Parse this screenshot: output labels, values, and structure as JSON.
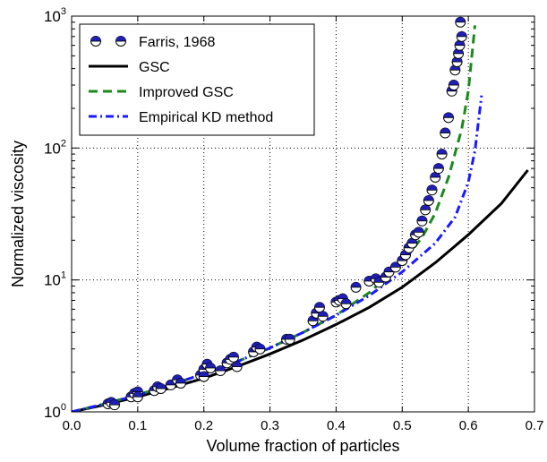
{
  "chart_data": {
    "type": "scatter",
    "xlabel": "Volume fraction of particles",
    "ylabel": "Normalized viscosity",
    "xlim": [
      0.0,
      0.7
    ],
    "ylim": [
      1,
      1000
    ],
    "yscale": "log",
    "grid": true,
    "legend_position": "top-left",
    "x_ticks": [
      "0.0",
      "0.1",
      "0.2",
      "0.3",
      "0.4",
      "0.5",
      "0.6",
      "0.7"
    ],
    "y_ticks": [
      {
        "value": 1,
        "base": "10",
        "exp": "0"
      },
      {
        "value": 10,
        "base": "10",
        "exp": "1"
      },
      {
        "value": 100,
        "base": "10",
        "exp": "2"
      },
      {
        "value": 1000,
        "base": "10",
        "exp": "3"
      }
    ],
    "series": [
      {
        "name": "Farris, 1968",
        "kind": "scatter",
        "color": "#1f1fb4",
        "points": [
          [
            0.055,
            1.15
          ],
          [
            0.06,
            1.18
          ],
          [
            0.065,
            1.13
          ],
          [
            0.09,
            1.3
          ],
          [
            0.095,
            1.38
          ],
          [
            0.1,
            1.42
          ],
          [
            0.1,
            1.3
          ],
          [
            0.125,
            1.45
          ],
          [
            0.13,
            1.55
          ],
          [
            0.135,
            1.5
          ],
          [
            0.15,
            1.6
          ],
          [
            0.16,
            1.75
          ],
          [
            0.165,
            1.65
          ],
          [
            0.195,
            1.9
          ],
          [
            0.2,
            2.1
          ],
          [
            0.205,
            2.3
          ],
          [
            0.21,
            2.15
          ],
          [
            0.2,
            1.85
          ],
          [
            0.225,
            2.05
          ],
          [
            0.235,
            2.35
          ],
          [
            0.24,
            2.5
          ],
          [
            0.245,
            2.6
          ],
          [
            0.25,
            2.2
          ],
          [
            0.275,
            2.85
          ],
          [
            0.28,
            3.1
          ],
          [
            0.285,
            3.0
          ],
          [
            0.325,
            3.55
          ],
          [
            0.33,
            3.55
          ],
          [
            0.365,
            4.9
          ],
          [
            0.37,
            5.6
          ],
          [
            0.375,
            6.2
          ],
          [
            0.38,
            5.3
          ],
          [
            0.4,
            6.8
          ],
          [
            0.405,
            7.0
          ],
          [
            0.41,
            7.2
          ],
          [
            0.415,
            6.6
          ],
          [
            0.43,
            8.8
          ],
          [
            0.45,
            9.8
          ],
          [
            0.46,
            10.2
          ],
          [
            0.465,
            9.6
          ],
          [
            0.475,
            10.5
          ],
          [
            0.48,
            11.5
          ],
          [
            0.49,
            12.5
          ],
          [
            0.5,
            14
          ],
          [
            0.505,
            15.5
          ],
          [
            0.51,
            17.5
          ],
          [
            0.515,
            19
          ],
          [
            0.52,
            22
          ],
          [
            0.525,
            23
          ],
          [
            0.53,
            28
          ],
          [
            0.535,
            34
          ],
          [
            0.54,
            40
          ],
          [
            0.545,
            48
          ],
          [
            0.55,
            60
          ],
          [
            0.555,
            70
          ],
          [
            0.56,
            90
          ],
          [
            0.565,
            130
          ],
          [
            0.57,
            170
          ],
          [
            0.575,
            270
          ],
          [
            0.578,
            300
          ],
          [
            0.58,
            390
          ],
          [
            0.583,
            450
          ],
          [
            0.585,
            520
          ],
          [
            0.587,
            600
          ],
          [
            0.59,
            700
          ],
          [
            0.588,
            900
          ]
        ]
      },
      {
        "name": "GSC",
        "kind": "line",
        "style": "solid",
        "color": "#000000",
        "points": [
          [
            0.0,
            1.0
          ],
          [
            0.05,
            1.13
          ],
          [
            0.1,
            1.3
          ],
          [
            0.15,
            1.52
          ],
          [
            0.2,
            1.8
          ],
          [
            0.25,
            2.2
          ],
          [
            0.3,
            2.75
          ],
          [
            0.35,
            3.5
          ],
          [
            0.4,
            4.6
          ],
          [
            0.45,
            6.2
          ],
          [
            0.5,
            8.8
          ],
          [
            0.55,
            13.5
          ],
          [
            0.6,
            22
          ],
          [
            0.65,
            38
          ],
          [
            0.69,
            68
          ]
        ]
      },
      {
        "name": "Improved GSC",
        "kind": "line",
        "style": "dashed",
        "color": "#1a8a1a",
        "points": [
          [
            0.0,
            1.0
          ],
          [
            0.05,
            1.15
          ],
          [
            0.1,
            1.35
          ],
          [
            0.15,
            1.6
          ],
          [
            0.2,
            1.95
          ],
          [
            0.25,
            2.4
          ],
          [
            0.3,
            3.05
          ],
          [
            0.35,
            4.0
          ],
          [
            0.4,
            5.4
          ],
          [
            0.45,
            8.0
          ],
          [
            0.5,
            13.5
          ],
          [
            0.53,
            21
          ],
          [
            0.55,
            32
          ],
          [
            0.57,
            60
          ],
          [
            0.59,
            140
          ],
          [
            0.6,
            270
          ],
          [
            0.61,
            850
          ]
        ]
      },
      {
        "name": "Empirical KD method",
        "kind": "line",
        "style": "dashdot",
        "color": "#1a1aff",
        "points": [
          [
            0.0,
            1.0
          ],
          [
            0.05,
            1.15
          ],
          [
            0.1,
            1.34
          ],
          [
            0.15,
            1.6
          ],
          [
            0.2,
            1.95
          ],
          [
            0.25,
            2.4
          ],
          [
            0.3,
            3.05
          ],
          [
            0.35,
            4.0
          ],
          [
            0.4,
            5.4
          ],
          [
            0.45,
            7.6
          ],
          [
            0.5,
            11.5
          ],
          [
            0.55,
            19
          ],
          [
            0.58,
            30
          ],
          [
            0.6,
            55
          ],
          [
            0.61,
            95
          ],
          [
            0.62,
            250
          ]
        ]
      }
    ]
  }
}
